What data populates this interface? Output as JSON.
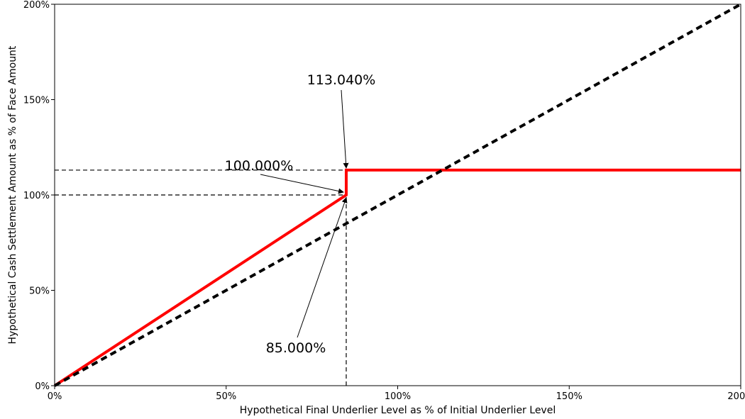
{
  "chart_data": {
    "type": "line",
    "xlabel": "Hypothetical Final Underlier Level as % of Initial Underlier Level",
    "ylabel": "Hypothetical Cash Settlement Amount as % of Face Amount",
    "xlim": [
      0,
      200
    ],
    "ylim": [
      0,
      200
    ],
    "x_ticks": [
      0,
      50,
      100,
      150,
      200
    ],
    "x_tick_labels": [
      "0%",
      "50%",
      "100%",
      "150%",
      "200%"
    ],
    "y_ticks": [
      0,
      50,
      100,
      150,
      200
    ],
    "y_tick_labels": [
      "0%",
      "50%",
      "100%",
      "150%",
      "200%"
    ],
    "grid": false,
    "legend": "none",
    "series": [
      {
        "style": "solid",
        "color": "#ff0000",
        "points": [
          [
            0,
            0
          ],
          [
            85,
            100
          ],
          [
            85,
            113.04
          ],
          [
            200,
            113.04
          ]
        ]
      },
      {
        "style": "dashed",
        "color": "#000000",
        "points": [
          [
            0,
            0
          ],
          [
            200,
            200
          ]
        ]
      }
    ],
    "reference_lines": [
      {
        "orientation": "horizontal",
        "value": 113.04,
        "from": 0,
        "to": 85
      },
      {
        "orientation": "horizontal",
        "value": 100,
        "from": 0,
        "to": 85
      },
      {
        "orientation": "vertical",
        "value": 85,
        "from": 0,
        "to": 113.04
      }
    ],
    "annotations": [
      {
        "text": "113.040%",
        "x": 85,
        "y": 113.04
      },
      {
        "text": "100.000%",
        "x": 85,
        "y": 100
      },
      {
        "text": "85.000%",
        "x": 85,
        "y": 100
      }
    ]
  }
}
